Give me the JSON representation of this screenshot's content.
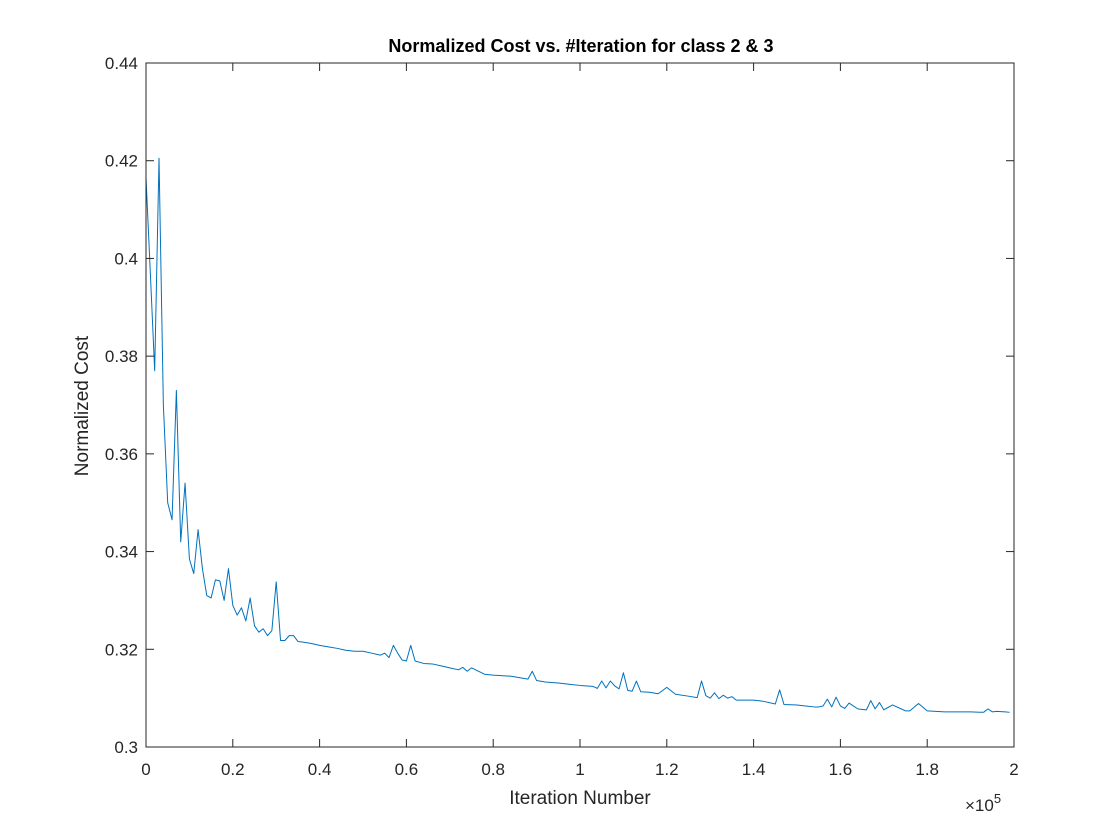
{
  "chart_data": {
    "type": "line",
    "title": "Normalized Cost vs. #Iteration for class 2 & 3",
    "xlabel": "Iteration Number",
    "ylabel": "Normalized Cost",
    "x_multiplier": "×10",
    "x_multiplier_exponent": "5",
    "xlim": [
      0,
      200000
    ],
    "ylim": [
      0.3,
      0.44
    ],
    "grid": false,
    "box": true,
    "line_color": "#0072BD",
    "x_ticks": [
      0,
      20000,
      40000,
      60000,
      80000,
      100000,
      120000,
      140000,
      160000,
      180000,
      200000
    ],
    "x_tick_labels": [
      "0",
      "0.2",
      "0.4",
      "0.6",
      "0.8",
      "1",
      "1.2",
      "1.4",
      "1.6",
      "1.8",
      "2"
    ],
    "y_ticks": [
      0.3,
      0.32,
      0.34,
      0.36,
      0.38,
      0.4,
      0.42,
      0.44
    ],
    "y_tick_labels": [
      "0.3",
      "0.32",
      "0.34",
      "0.36",
      "0.38",
      "0.4",
      "0.42",
      "0.44"
    ],
    "series": [
      {
        "x": [
          0,
          1000,
          2000,
          3000,
          4000,
          5000,
          6000,
          7000,
          8000,
          9000,
          10000,
          11000,
          12000,
          13000,
          14000,
          15000,
          16000,
          17000,
          18000,
          19000,
          20000,
          21000,
          22000,
          23000,
          24000,
          25000,
          26000,
          27000,
          28000,
          29000,
          30000,
          31000,
          32000,
          33000,
          34000,
          35000,
          36000,
          38000,
          40000,
          42000,
          44000,
          46000,
          48000,
          50000,
          52000,
          54000,
          55000,
          56000,
          57000,
          58000,
          59000,
          60000,
          61000,
          62000,
          64000,
          66000,
          68000,
          70000,
          72000,
          73000,
          74000,
          75000,
          78000,
          80000,
          84000,
          88000,
          89000,
          90000,
          92000,
          95000,
          98000,
          100000,
          103000,
          104000,
          105000,
          106000,
          107000,
          108000,
          109000,
          110000,
          111000,
          112000,
          113000,
          114000,
          116000,
          118000,
          120000,
          122000,
          125000,
          127000,
          128000,
          129000,
          130000,
          131000,
          132000,
          133000,
          134000,
          135000,
          136000,
          138000,
          140000,
          142000,
          145000,
          146000,
          147000,
          150000,
          152000,
          154000,
          155000,
          156000,
          157000,
          158000,
          159000,
          160000,
          161000,
          162000,
          164000,
          166000,
          167000,
          168000,
          169000,
          170000,
          172000,
          174000,
          175000,
          176000,
          178000,
          180000,
          184000,
          186000,
          188000,
          190000,
          192000,
          193000,
          194000,
          195000,
          196000,
          198000,
          199000
        ],
        "y": [
          0.4165,
          0.397,
          0.377,
          0.4205,
          0.37,
          0.35,
          0.3465,
          0.373,
          0.342,
          0.354,
          0.3385,
          0.3355,
          0.3445,
          0.3365,
          0.331,
          0.3305,
          0.3342,
          0.334,
          0.33,
          0.3365,
          0.329,
          0.327,
          0.3285,
          0.3258,
          0.3305,
          0.3248,
          0.3235,
          0.3242,
          0.3228,
          0.3238,
          0.3338,
          0.3218,
          0.3218,
          0.3228,
          0.3228,
          0.3216,
          0.3215,
          0.3212,
          0.3208,
          0.3205,
          0.3202,
          0.3198,
          0.3196,
          0.3196,
          0.3192,
          0.3188,
          0.3192,
          0.3183,
          0.3208,
          0.3192,
          0.3178,
          0.3176,
          0.3208,
          0.3176,
          0.3171,
          0.317,
          0.3166,
          0.3162,
          0.3158,
          0.3163,
          0.3155,
          0.3162,
          0.3149,
          0.3147,
          0.3145,
          0.3139,
          0.3155,
          0.3136,
          0.3133,
          0.3131,
          0.3128,
          0.3126,
          0.3124,
          0.312,
          0.3135,
          0.3121,
          0.3135,
          0.3125,
          0.3119,
          0.3152,
          0.3116,
          0.3114,
          0.3135,
          0.3113,
          0.3112,
          0.3109,
          0.3122,
          0.3108,
          0.3104,
          0.3101,
          0.3135,
          0.3105,
          0.31,
          0.3111,
          0.3099,
          0.3106,
          0.31,
          0.3103,
          0.3096,
          0.3096,
          0.3096,
          0.3094,
          0.3088,
          0.3117,
          0.3087,
          0.3086,
          0.3084,
          0.3082,
          0.3082,
          0.3084,
          0.3098,
          0.3082,
          0.3102,
          0.3084,
          0.3079,
          0.309,
          0.3078,
          0.3076,
          0.3095,
          0.3078,
          0.3091,
          0.3076,
          0.3086,
          0.3078,
          0.3074,
          0.3074,
          0.3089,
          0.3074,
          0.3072,
          0.3072,
          0.3072,
          0.3072,
          0.3071,
          0.3071,
          0.3078,
          0.3072,
          0.3073,
          0.3072,
          0.3071
        ]
      }
    ]
  }
}
